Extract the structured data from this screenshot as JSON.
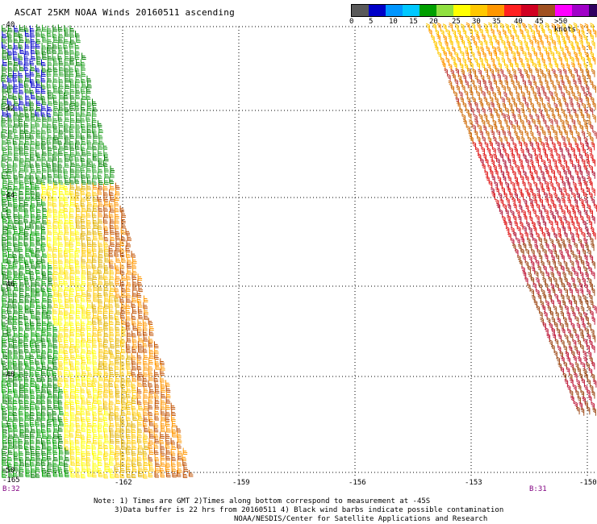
{
  "title": "ASCAT 25KM NOAA Winds 20160511 ascending",
  "legend": {
    "colors": [
      "#5a5a5a",
      "#0000c8",
      "#0096ff",
      "#00c8ff",
      "#00a000",
      "#90e040",
      "#ffff00",
      "#ffc800",
      "#ff9600",
      "#ff2020",
      "#d00020",
      "#a05020",
      "#ff00ff",
      "#a000c8",
      "#300060"
    ],
    "labels": [
      "0",
      "5",
      "10",
      "15",
      "20",
      "25",
      "30",
      "35",
      "40",
      "45",
      ">50 knots"
    ]
  },
  "axes": {
    "longitudes": [
      "-162",
      "-159",
      "-156",
      "-153",
      "-150"
    ],
    "latitudes": [
      "-40",
      "-42",
      "-44",
      "-46",
      "-48",
      "-50"
    ],
    "corner_left": "-165"
  },
  "pass_labels": {
    "left": "B:32",
    "right": "B:31"
  },
  "notes": [
    "Note: 1) Times are GMT 2)Times along bottom correspond to measurement at -45S",
    "3)Data buffer is 22 hrs from 20160511 4) Black wind barbs indicate possible contamination",
    "NOAA/NESDIS/Center for Satellite Applications and Research"
  ]
}
